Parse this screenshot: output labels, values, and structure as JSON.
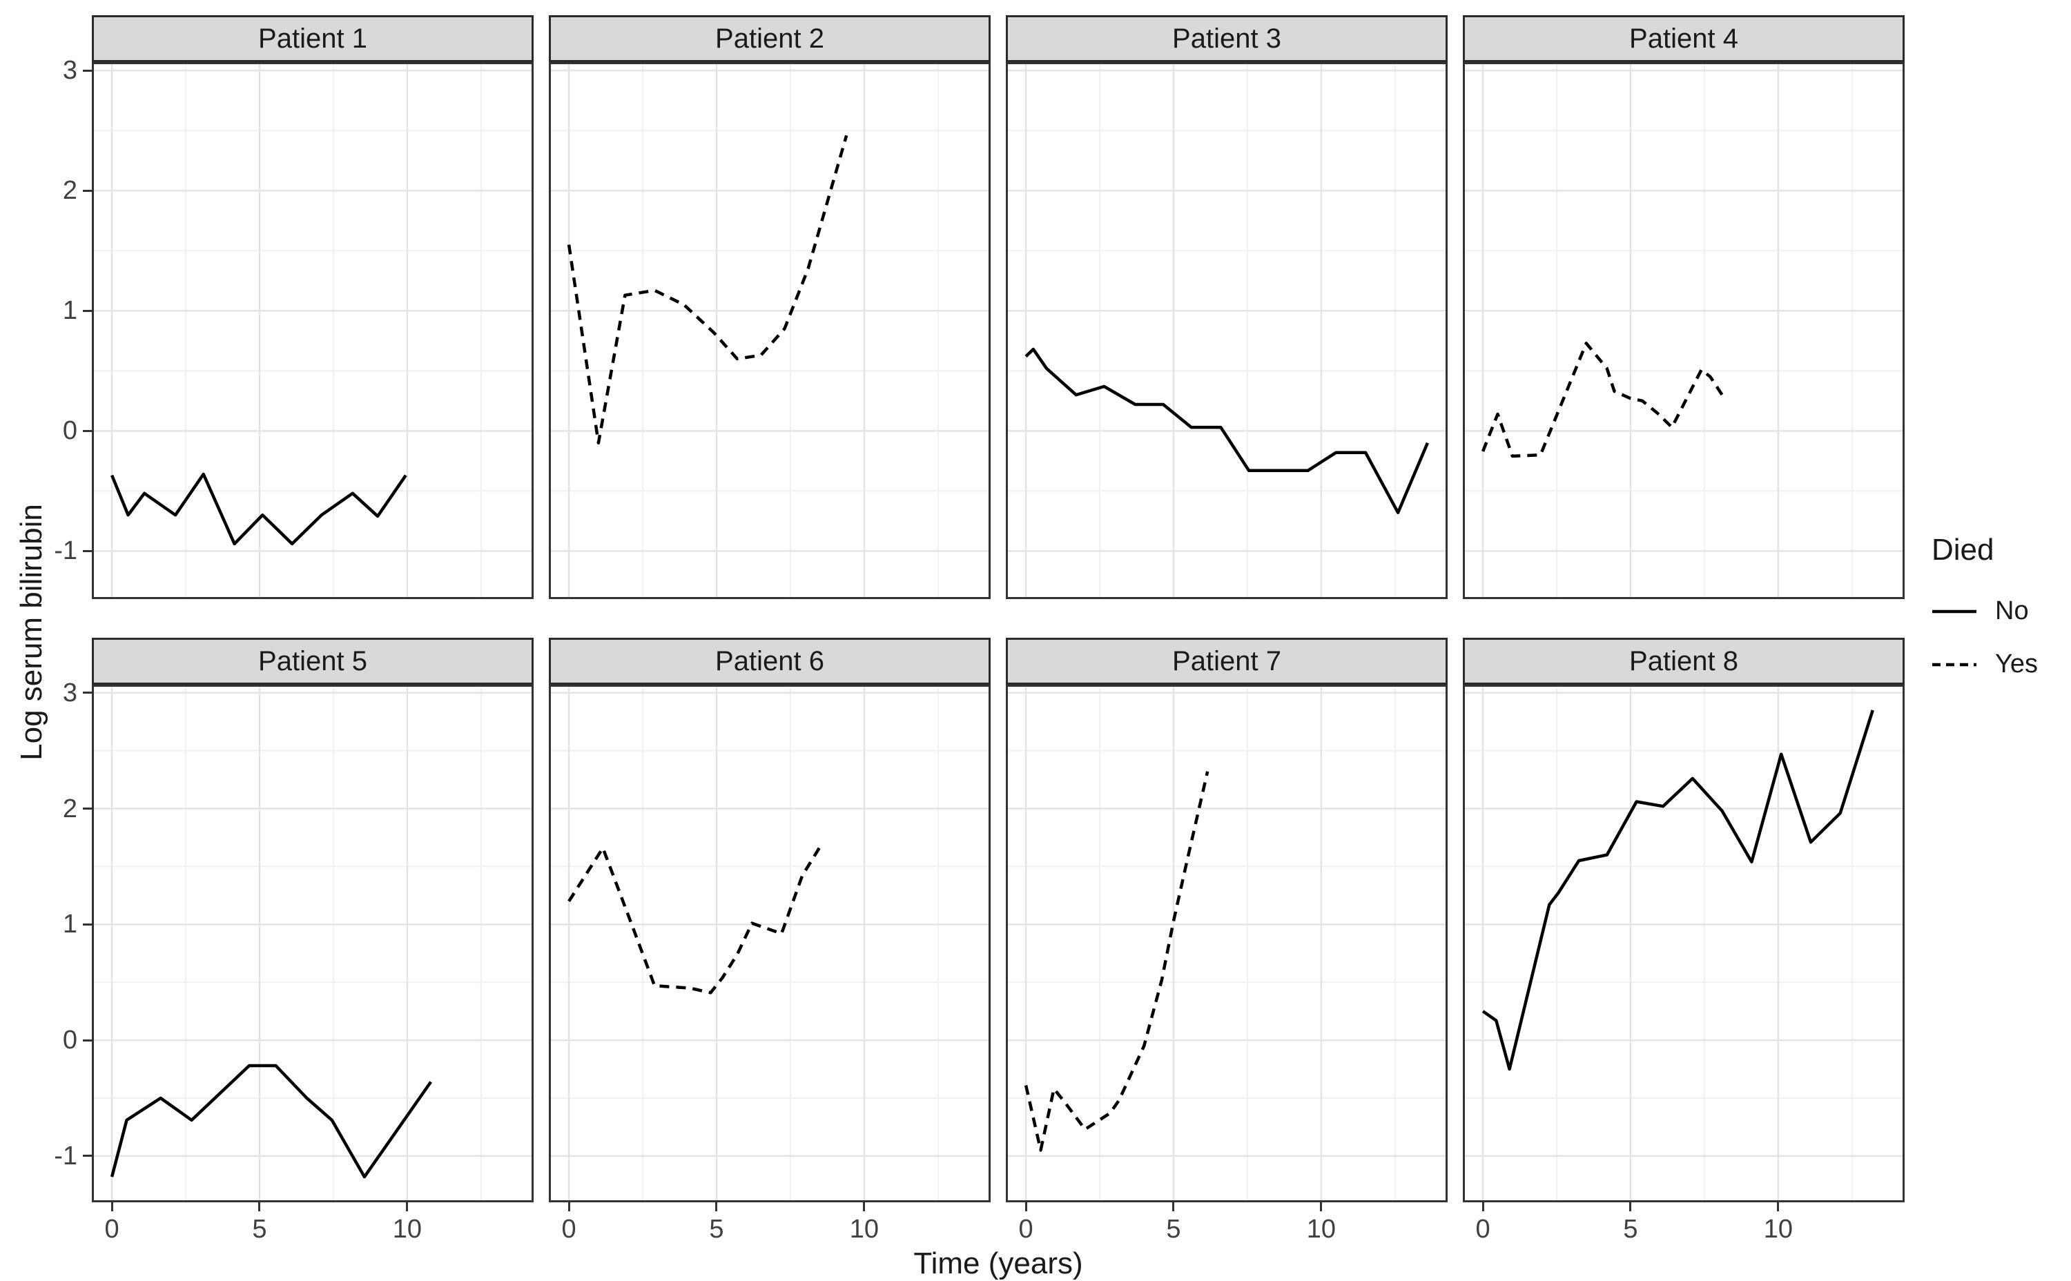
{
  "figure": {
    "x_axis_title": "Time (years)",
    "y_axis_title": "Log serum bilirubin"
  },
  "legend": {
    "title": "Died",
    "items": [
      {
        "label": "No",
        "linetype": "solid"
      },
      {
        "label": "Yes",
        "linetype": "dashed"
      }
    ]
  },
  "colors": {
    "line": "#000000",
    "strip_fill": "#d9d9d9",
    "strip_border": "#2b2b2b",
    "panel_border": "#333333",
    "grid_major": "#e4e4e4",
    "grid_minor": "#f1f1f1",
    "tick_mark": "#333333",
    "tick_text": "#404040",
    "title_text": "#1a1a1a",
    "background": "#ffffff"
  },
  "chart_data": {
    "type": "line",
    "title": "",
    "xlabel": "Time (years)",
    "ylabel": "Log serum bilirubin",
    "xlim": [
      -0.68,
      14.28
    ],
    "ylim": [
      -1.4,
      3.07
    ],
    "x_major_ticks": [
      0,
      5,
      10
    ],
    "x_minor_ticks": [
      2.5,
      7.5,
      12.5
    ],
    "y_major_ticks": [
      3,
      2,
      1,
      0,
      -1
    ],
    "y_minor_ticks": [
      2.5,
      1.5,
      0.5,
      -0.5
    ],
    "x_tick_labels": [
      "0",
      "5",
      "10"
    ],
    "y_tick_labels": [
      "3",
      "2",
      "1",
      "0",
      "-1"
    ],
    "grid": true,
    "legend_position": "right",
    "legend_title": "Died",
    "linetype_by_group": {
      "No": "solid",
      "Yes": "dashed"
    },
    "facets": [
      {
        "name": "Patient 1",
        "died": "No",
        "x": [
          0,
          0.55,
          1.1,
          2.15,
          3.1,
          4.15,
          5.1,
          6.1,
          7.1,
          8.15,
          9.0,
          9.95
        ],
        "y": [
          -0.37,
          -0.7,
          -0.52,
          -0.7,
          -0.36,
          -0.94,
          -0.7,
          -0.94,
          -0.7,
          -0.52,
          -0.71,
          -0.37
        ]
      },
      {
        "name": "Patient 2",
        "died": "Yes",
        "x": [
          0,
          1.0,
          1.9,
          2.9,
          3.9,
          4.9,
          5.7,
          6.5,
          7.3,
          8.1,
          9.4
        ],
        "y": [
          1.55,
          -0.1,
          1.13,
          1.17,
          1.05,
          0.82,
          0.6,
          0.63,
          0.85,
          1.35,
          2.46
        ]
      },
      {
        "name": "Patient 3",
        "died": "No",
        "x": [
          0,
          0.25,
          0.7,
          1.7,
          2.65,
          3.7,
          4.65,
          5.6,
          6.6,
          7.55,
          8.5,
          9.55,
          10.5,
          11.5,
          12.6,
          13.6
        ],
        "y": [
          0.62,
          0.68,
          0.52,
          0.3,
          0.37,
          0.22,
          0.22,
          0.03,
          0.03,
          -0.33,
          -0.33,
          -0.33,
          -0.18,
          -0.18,
          -0.68,
          -0.1
        ]
      },
      {
        "name": "Patient 4",
        "died": "Yes",
        "x": [
          0,
          0.5,
          1.0,
          1.95,
          3.5,
          4.2,
          4.45,
          5.0,
          5.4,
          5.9,
          6.4,
          7.4,
          7.7,
          8.1
        ],
        "y": [
          -0.17,
          0.14,
          -0.21,
          -0.2,
          0.73,
          0.52,
          0.33,
          0.27,
          0.25,
          0.15,
          0.03,
          0.51,
          0.45,
          0.3
        ]
      },
      {
        "name": "Patient 5",
        "died": "No",
        "x": [
          0,
          0.5,
          1.65,
          2.7,
          4.65,
          5.55,
          6.6,
          7.45,
          8.55,
          10.8
        ],
        "y": [
          -1.18,
          -0.69,
          -0.5,
          -0.69,
          -0.22,
          -0.22,
          -0.5,
          -0.69,
          -1.18,
          -0.36
        ]
      },
      {
        "name": "Patient 6",
        "died": "Yes",
        "x": [
          0,
          1.15,
          2.2,
          2.9,
          4.1,
          4.8,
          5.2,
          5.7,
          6.2,
          7.2,
          7.9,
          8.6
        ],
        "y": [
          1.2,
          1.66,
          0.95,
          0.47,
          0.45,
          0.41,
          0.54,
          0.74,
          1.01,
          0.92,
          1.42,
          1.71
        ]
      },
      {
        "name": "Patient 7",
        "died": "Yes",
        "x": [
          0,
          0.5,
          0.95,
          1.3,
          2.0,
          2.85,
          3.15,
          4.0,
          4.6,
          5.0,
          5.45,
          6.15
        ],
        "y": [
          -0.39,
          -0.95,
          -0.42,
          -0.53,
          -0.77,
          -0.63,
          -0.52,
          -0.05,
          0.52,
          1.03,
          1.54,
          2.32
        ]
      },
      {
        "name": "Patient 8",
        "died": "No",
        "x": [
          0,
          0.45,
          0.9,
          2.25,
          2.55,
          3.25,
          4.2,
          5.2,
          6.1,
          7.1,
          8.1,
          9.1,
          10.1,
          11.1,
          12.1,
          13.2
        ],
        "y": [
          0.25,
          0.17,
          -0.25,
          1.17,
          1.27,
          1.55,
          1.6,
          2.06,
          2.02,
          2.26,
          1.98,
          1.54,
          2.47,
          1.71,
          1.96,
          2.85
        ]
      }
    ]
  }
}
